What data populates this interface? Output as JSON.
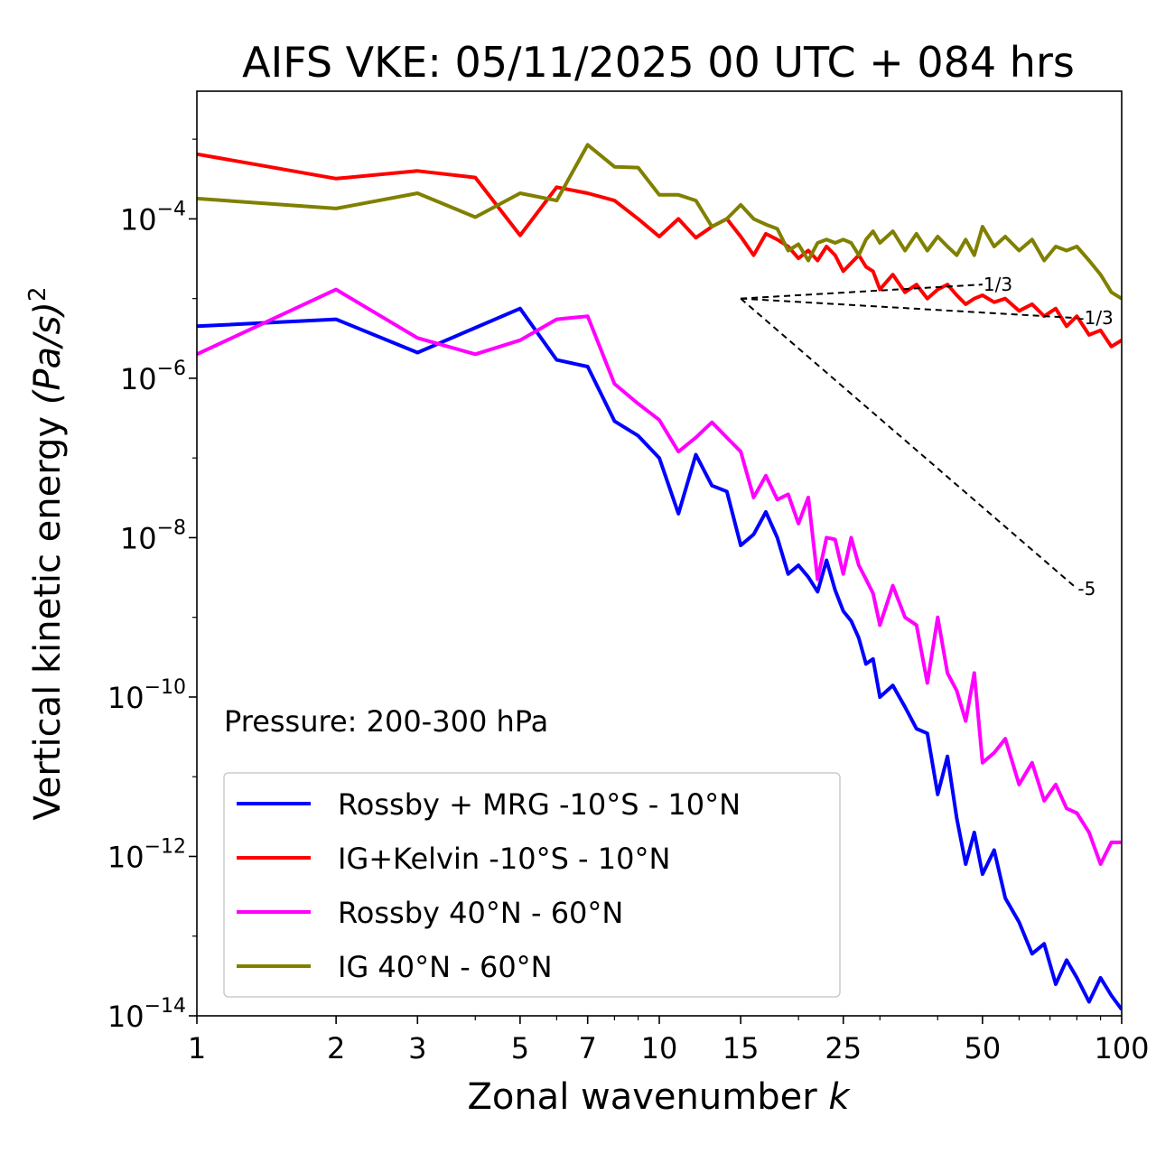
{
  "chart_data": {
    "type": "line",
    "title": "AIFS VKE: 05/11/2025 00 UTC + 084 hrs",
    "xlabel_text": "Zonal wavenumber",
    "xlabel_var": "k",
    "ylabel_text": "Vertical kinetic energy",
    "ylabel_unit": "(Pa/s)",
    "ylabel_exp": "2",
    "xscale": "log",
    "yscale": "log",
    "xlim": [
      1,
      100
    ],
    "ylim": [
      1e-14,
      0.004
    ],
    "x_ticks": [
      {
        "value": 1,
        "label": "1"
      },
      {
        "value": 2,
        "label": "2"
      },
      {
        "value": 3,
        "label": "3"
      },
      {
        "value": 5,
        "label": "5"
      },
      {
        "value": 7,
        "label": "7"
      },
      {
        "value": 10,
        "label": "10"
      },
      {
        "value": 15,
        "label": "15"
      },
      {
        "value": 25,
        "label": "25"
      },
      {
        "value": 50,
        "label": "50"
      },
      {
        "value": 100,
        "label": "100"
      }
    ],
    "y_ticks": [
      {
        "value": 0.0001,
        "base": "10",
        "exp": "−4"
      },
      {
        "value": 1e-06,
        "base": "10",
        "exp": "−6"
      },
      {
        "value": 1e-08,
        "base": "10",
        "exp": "−8"
      },
      {
        "value": 1e-10,
        "base": "10",
        "exp": "−10"
      },
      {
        "value": 1e-12,
        "base": "10",
        "exp": "−12"
      },
      {
        "value": 1e-14,
        "base": "10",
        "exp": "−14"
      }
    ],
    "annotation": "Pressure: 200-300 hPa",
    "legend_position": "lower-left",
    "series": [
      {
        "name": "Rossby + MRG -10°S - 10°N",
        "color": "#0000ff",
        "x": [
          1,
          2,
          3,
          4,
          5,
          6,
          7,
          8,
          9,
          10,
          11,
          12,
          13,
          14,
          15,
          16,
          17,
          18,
          19,
          20,
          21,
          22,
          23,
          24,
          25,
          26,
          27,
          28,
          29,
          30,
          32,
          34,
          36,
          38,
          40,
          42,
          44,
          46,
          48,
          50,
          53,
          56,
          60,
          64,
          68,
          72,
          76,
          80,
          85,
          90,
          95,
          100
        ],
        "values": [
          4.5e-06,
          5.5e-06,
          2.1e-06,
          4.3e-06,
          7.5e-06,
          1.7e-06,
          1.4e-06,
          2.9e-07,
          1.9e-07,
          1e-07,
          2e-08,
          1.1e-07,
          4.5e-08,
          3.8e-08,
          8e-09,
          1.1e-08,
          2.1e-08,
          1e-08,
          3.5e-09,
          4.5e-09,
          3.2e-09,
          2.1e-09,
          5.2e-09,
          2.2e-09,
          1.2e-09,
          9e-10,
          5.5e-10,
          2.6e-10,
          3e-10,
          1e-10,
          1.4e-10,
          7.5e-11,
          4e-11,
          3.5e-11,
          6e-12,
          1.8e-11,
          3e-12,
          8e-13,
          2e-12,
          6e-13,
          1.2e-12,
          3e-13,
          1.5e-13,
          6e-14,
          8e-14,
          2.5e-14,
          5e-14,
          3e-14,
          1.5e-14,
          3e-14,
          1.8e-14,
          1.2e-14
        ]
      },
      {
        "name": "IG+Kelvin -10°S - 10°N",
        "color": "#ff0000",
        "x": [
          1,
          2,
          3,
          4,
          5,
          6,
          7,
          8,
          9,
          10,
          11,
          12,
          13,
          14,
          15,
          16,
          17,
          18,
          19,
          20,
          21,
          22,
          23,
          24,
          25,
          26,
          27,
          28,
          29,
          30,
          32,
          34,
          36,
          38,
          40,
          42,
          44,
          46,
          48,
          50,
          53,
          56,
          60,
          64,
          68,
          72,
          76,
          80,
          85,
          90,
          95,
          100
        ],
        "values": [
          0.00065,
          0.00032,
          0.0004,
          0.00033,
          6.2e-05,
          0.00025,
          0.00021,
          0.00017,
          0.0001,
          6e-05,
          0.0001,
          5.8e-05,
          8e-05,
          0.0001,
          6e-05,
          3.5e-05,
          6.5e-05,
          5.5e-05,
          4.5e-05,
          3.2e-05,
          4e-05,
          3e-05,
          4.5e-05,
          3.5e-05,
          2.2e-05,
          2.8e-05,
          3.5e-05,
          2.5e-05,
          2.2e-05,
          1.3e-05,
          2e-05,
          1.2e-05,
          1.5e-05,
          1e-05,
          1.3e-05,
          1.5e-05,
          1.1e-05,
          8.5e-06,
          1e-05,
          1.1e-05,
          9e-06,
          1e-05,
          7e-06,
          8.5e-06,
          6e-06,
          7.5e-06,
          4.5e-06,
          6e-06,
          3.5e-06,
          4e-06,
          2.5e-06,
          3e-06
        ]
      },
      {
        "name": "Rossby 40°N - 60°N",
        "color": "#ff00ff",
        "x": [
          1,
          2,
          3,
          4,
          5,
          6,
          7,
          8,
          9,
          10,
          11,
          12,
          13,
          14,
          15,
          16,
          17,
          18,
          19,
          20,
          21,
          22,
          23,
          24,
          25,
          26,
          27,
          28,
          29,
          30,
          32,
          34,
          36,
          38,
          40,
          42,
          44,
          46,
          48,
          50,
          53,
          56,
          60,
          64,
          68,
          72,
          76,
          80,
          85,
          90,
          95,
          100
        ],
        "values": [
          2e-06,
          1.3e-05,
          3.2e-06,
          2e-06,
          3e-06,
          5.5e-06,
          6e-06,
          8.5e-07,
          4.8e-07,
          3e-07,
          1.2e-07,
          1.8e-07,
          2.8e-07,
          1.8e-07,
          1.2e-07,
          3.2e-08,
          6e-08,
          3e-08,
          3.5e-08,
          1.5e-08,
          3.2e-08,
          3e-09,
          1e-08,
          9.5e-09,
          3.5e-09,
          1e-08,
          4.5e-09,
          3e-09,
          2e-09,
          8e-10,
          2.5e-09,
          1e-09,
          8e-10,
          1.5e-10,
          1e-09,
          2e-10,
          1.2e-10,
          5e-11,
          2e-10,
          1.5e-11,
          2e-11,
          3e-11,
          8e-12,
          1.5e-11,
          5e-12,
          8e-12,
          4e-12,
          3.5e-12,
          2e-12,
          8e-13,
          1.5e-12,
          1.5e-12
        ]
      },
      {
        "name": "IG 40°N - 60°N",
        "color": "#808000",
        "x": [
          1,
          2,
          3,
          4,
          5,
          6,
          7,
          8,
          9,
          10,
          11,
          12,
          13,
          14,
          15,
          16,
          17,
          18,
          19,
          20,
          21,
          22,
          23,
          24,
          25,
          26,
          27,
          28,
          29,
          30,
          32,
          34,
          36,
          38,
          40,
          42,
          44,
          46,
          48,
          50,
          53,
          56,
          60,
          64,
          68,
          72,
          76,
          80,
          85,
          90,
          95,
          100
        ],
        "values": [
          0.00018,
          0.000135,
          0.00021,
          0.000105,
          0.00021,
          0.00017,
          0.00085,
          0.00045,
          0.00044,
          0.0002,
          0.0002,
          0.00017,
          8e-05,
          0.0001,
          0.00015,
          0.0001,
          8.5e-05,
          7.5e-05,
          4e-05,
          4.8e-05,
          3e-05,
          5e-05,
          5.5e-05,
          5e-05,
          5.5e-05,
          5e-05,
          3.5e-05,
          5.5e-05,
          7e-05,
          5e-05,
          7e-05,
          4e-05,
          6.5e-05,
          4e-05,
          6e-05,
          4.5e-05,
          3.5e-05,
          5.5e-05,
          3.5e-05,
          8e-05,
          4.5e-05,
          6e-05,
          4e-05,
          5.5e-05,
          3e-05,
          4.5e-05,
          4e-05,
          4.5e-05,
          3e-05,
          2e-05,
          1.2e-05,
          1e-05
        ]
      }
    ],
    "reference_lines": [
      {
        "label": "1/3",
        "x": [
          15,
          50
        ],
        "y": [
          1e-05,
          1.5e-05
        ]
      },
      {
        "label": "-1/3",
        "x": [
          15,
          80
        ],
        "y": [
          1e-05,
          5.7e-06
        ]
      },
      {
        "label": "-5",
        "x": [
          15,
          80
        ],
        "y": [
          1e-05,
          2.3e-09
        ]
      }
    ]
  }
}
